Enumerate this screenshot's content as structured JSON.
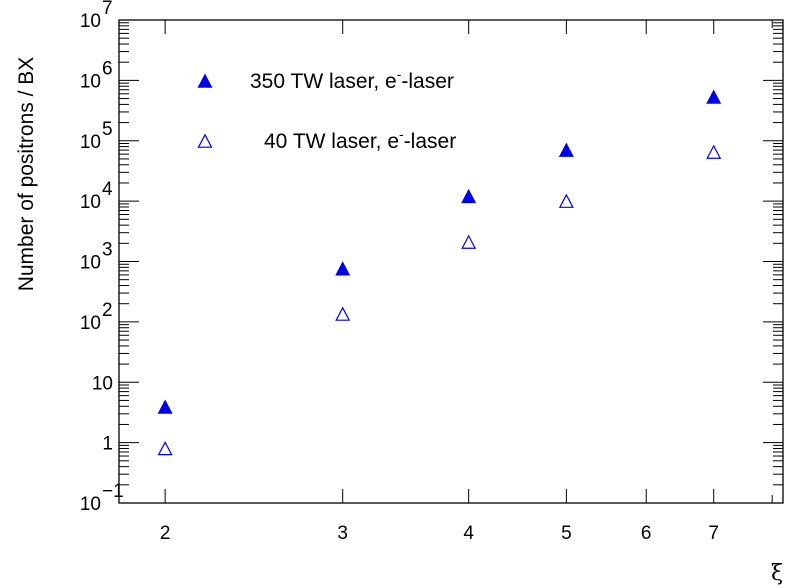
{
  "chart_data": {
    "type": "scatter",
    "xlabel": "ξ",
    "ylabel": "Number of positrons / BX",
    "x_scale": "log",
    "y_scale": "log",
    "xlim": [
      1.8,
      8.2
    ],
    "ylim": [
      0.1,
      10000000
    ],
    "x_ticks": [
      {
        "value": 2,
        "label": "2"
      },
      {
        "value": 3,
        "label": "3"
      },
      {
        "value": 4,
        "label": "4"
      },
      {
        "value": 5,
        "label": "5"
      },
      {
        "value": 6,
        "label": "6"
      },
      {
        "value": 7,
        "label": "7"
      }
    ],
    "y_ticks": [
      {
        "value": 0.1,
        "base": "10",
        "exp": "−1"
      },
      {
        "value": 1,
        "base": "1",
        "exp": ""
      },
      {
        "value": 10,
        "base": "10",
        "exp": ""
      },
      {
        "value": 100,
        "base": "10",
        "exp": "2"
      },
      {
        "value": 1000,
        "base": "10",
        "exp": "3"
      },
      {
        "value": 10000,
        "base": "10",
        "exp": "4"
      },
      {
        "value": 100000,
        "base": "10",
        "exp": "5"
      },
      {
        "value": 1000000,
        "base": "10",
        "exp": "6"
      },
      {
        "value": 10000000,
        "base": "10",
        "exp": "7"
      }
    ],
    "legend_position": "top-left",
    "series": [
      {
        "name_main": "350 TW laser, e",
        "name_sup": "-",
        "name_tail": "-laser",
        "marker": "filled-triangle",
        "color": "#0000e6",
        "points": [
          [
            2,
            3.9
          ],
          [
            3,
            760
          ],
          [
            4,
            12000
          ],
          [
            5,
            70000
          ],
          [
            7,
            530000
          ]
        ]
      },
      {
        "name_main": "40 TW laser, e",
        "name_sup": "-",
        "name_tail": "-laser",
        "marker": "open-triangle",
        "color": "#0000e6",
        "points": [
          [
            2,
            0.8
          ],
          [
            3,
            135
          ],
          [
            4,
            2100
          ],
          [
            5,
            10000
          ],
          [
            7,
            65000
          ]
        ]
      }
    ]
  }
}
